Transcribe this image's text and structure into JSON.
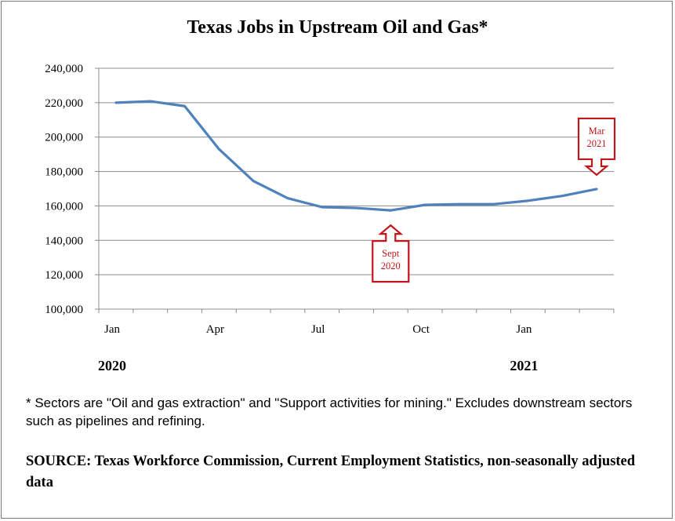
{
  "chart_data": {
    "type": "line",
    "title": "Texas Jobs in Upstream Oil and Gas*",
    "x": [
      "Jan 2020",
      "Feb 2020",
      "Mar 2020",
      "Apr 2020",
      "May 2020",
      "Jun 2020",
      "Jul 2020",
      "Aug 2020",
      "Sep 2020",
      "Oct 2020",
      "Nov 2020",
      "Dec 2020",
      "Jan 2021",
      "Feb 2021",
      "Mar 2021"
    ],
    "series": [
      {
        "values": [
          220000,
          220800,
          218000,
          193000,
          174500,
          164500,
          159300,
          158800,
          157400,
          160600,
          161000,
          161000,
          163000,
          165800,
          169800
        ],
        "color": "#4f81bd"
      }
    ],
    "x_tick_labels": [
      "Jan",
      "Apr",
      "Jul",
      "Oct",
      "Jan"
    ],
    "x_year_labels": [
      "2020",
      "2021"
    ],
    "y_tick_labels": [
      "100,000",
      "120,000",
      "140,000",
      "160,000",
      "180,000",
      "200,000",
      "220,000",
      "240,000"
    ],
    "ylim": [
      100000,
      240000
    ],
    "grid": "horizontal",
    "legend": "none",
    "annotations": [
      {
        "text_lines": [
          "Sept",
          "2020"
        ],
        "points_to": "Sep 2020",
        "arrow": "up",
        "color": "#c0161c"
      },
      {
        "text_lines": [
          "Mar",
          "2021"
        ],
        "points_to": "Mar 2021",
        "arrow": "down",
        "color": "#c0161c"
      }
    ]
  },
  "footnote": "* Sectors are \"Oil and gas extraction\" and \"Support activities for mining.\"   Excludes downstream sectors such as pipelines and refining.",
  "source": "SOURCE: Texas Workforce Commission, Current Employment Statistics, non-seasonally adjusted data"
}
